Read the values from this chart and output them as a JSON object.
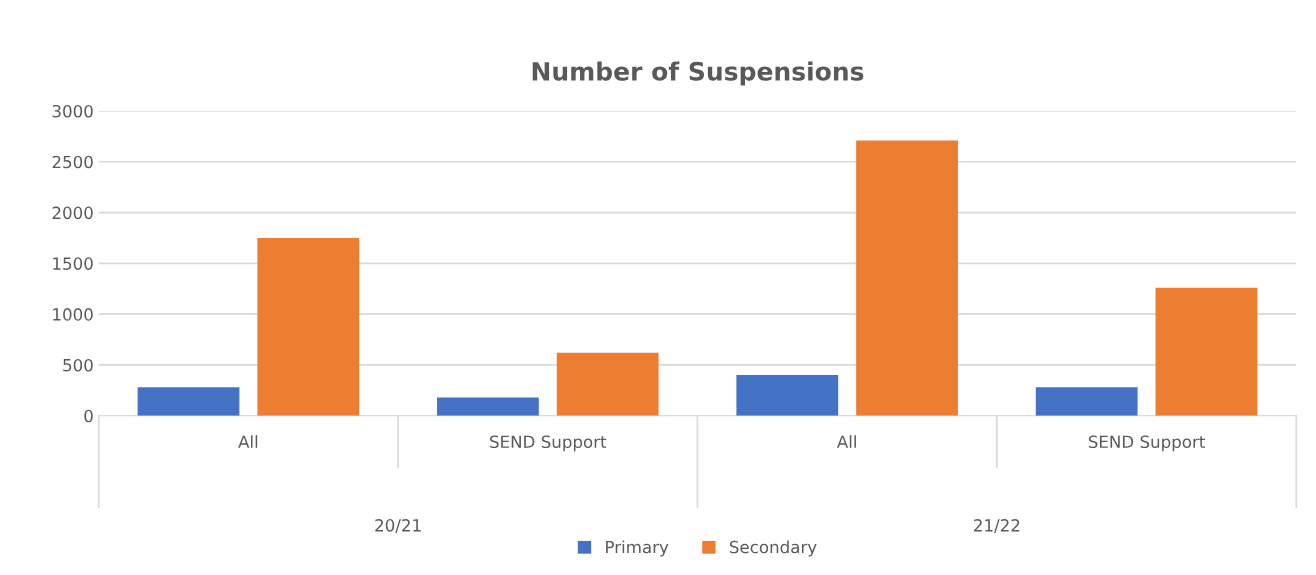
{
  "chart_data": {
    "type": "bar",
    "title": "Number of Suspensions",
    "categories": [
      "All",
      "SEND Support",
      "All",
      "SEND Support"
    ],
    "series": [
      {
        "name": "Primary",
        "color": "#4472c4",
        "values": [
          280,
          180,
          400,
          280
        ]
      },
      {
        "name": "Secondary",
        "color": "#ed7d31",
        "values": [
          1750,
          620,
          2710,
          1260
        ]
      }
    ],
    "annotations": [
      "20/21",
      "21/22"
    ],
    "ylim": [
      0,
      3000
    ],
    "yticks": [
      0,
      500,
      1000,
      1500,
      2000,
      2500,
      3000
    ],
    "grid": "y",
    "legend": "bottom"
  }
}
